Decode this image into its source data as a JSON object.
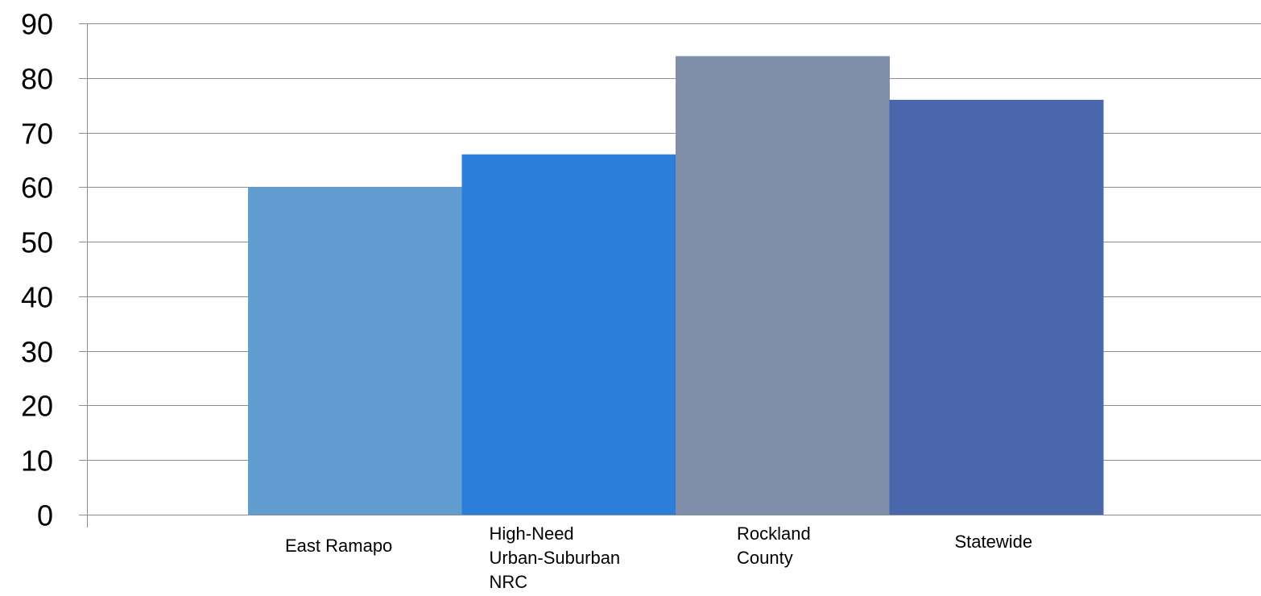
{
  "chart_data": {
    "type": "bar",
    "title": "",
    "xlabel": "",
    "ylabel": "",
    "categories": [
      [
        "East Ramapo"
      ],
      [
        "High-Need",
        "Urban-Suburban",
        "NRC"
      ],
      [
        "Rockland",
        "County"
      ],
      [
        "Statewide"
      ]
    ],
    "values": [
      60,
      66,
      84,
      76
    ],
    "colors": [
      "#629dd1",
      "#2c7fd8",
      "#7f8fa9",
      "#4a66ac"
    ],
    "ylim": [
      0,
      90
    ],
    "yticks": [
      0,
      10,
      20,
      30,
      40,
      50,
      60,
      70,
      80,
      90
    ],
    "grid": true,
    "legend": "none"
  }
}
